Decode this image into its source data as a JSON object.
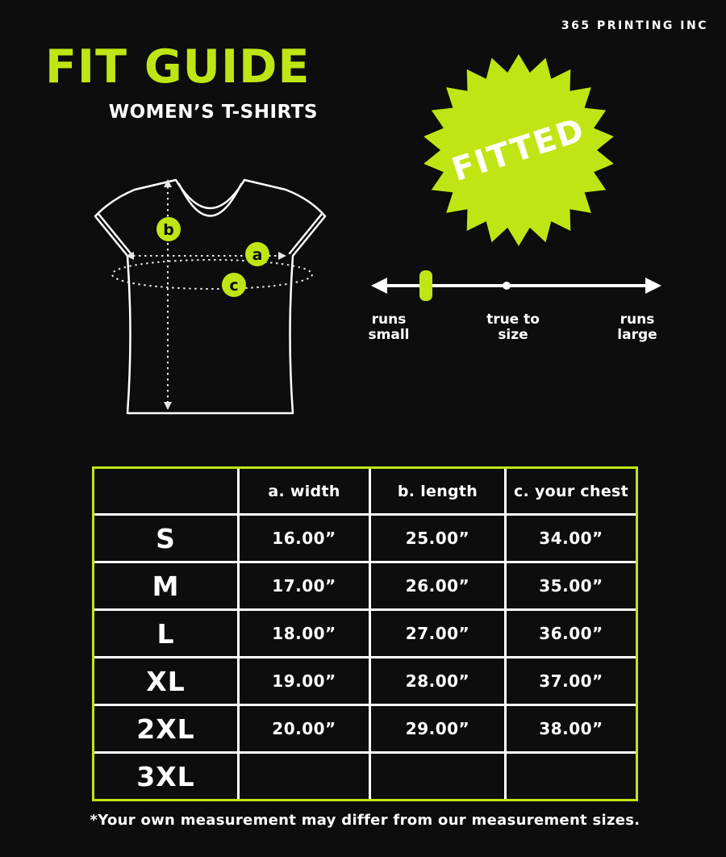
{
  "brand": "365 PRINTING INC",
  "header": {
    "title": "FIT GUIDE",
    "subtitle": "WOMEN’S T-SHIRTS"
  },
  "badge": {
    "label": "FITTED"
  },
  "diagram": {
    "points": [
      {
        "label": "b"
      },
      {
        "label": "a"
      },
      {
        "label": "c"
      }
    ]
  },
  "fit_scale": {
    "marker_at": "runs small",
    "labels": [
      {
        "line1": "runs",
        "line2": "small"
      },
      {
        "line1": "true to",
        "line2": "size"
      },
      {
        "line1": "runs",
        "line2": "large"
      }
    ]
  },
  "size_table": {
    "headers": [
      "",
      "a. width",
      "b. length",
      "c. your chest"
    ],
    "rows": [
      {
        "size": "S",
        "width": "16.00”",
        "length": "25.00”",
        "chest": "34.00”"
      },
      {
        "size": "M",
        "width": "17.00”",
        "length": "26.00”",
        "chest": "35.00”"
      },
      {
        "size": "L",
        "width": "18.00”",
        "length": "27.00”",
        "chest": "36.00”"
      },
      {
        "size": "XL",
        "width": "19.00”",
        "length": "28.00”",
        "chest": "37.00”"
      },
      {
        "size": "2XL",
        "width": "20.00”",
        "length": "29.00”",
        "chest": "38.00”"
      },
      {
        "size": "3XL",
        "width": "",
        "length": "",
        "chest": ""
      }
    ]
  },
  "footnote": "*Your own measurement may differ from our measurement sizes.",
  "colors": {
    "accent_green": "#bfe614",
    "background": "#0d0d0d",
    "text": "#ffffff"
  }
}
